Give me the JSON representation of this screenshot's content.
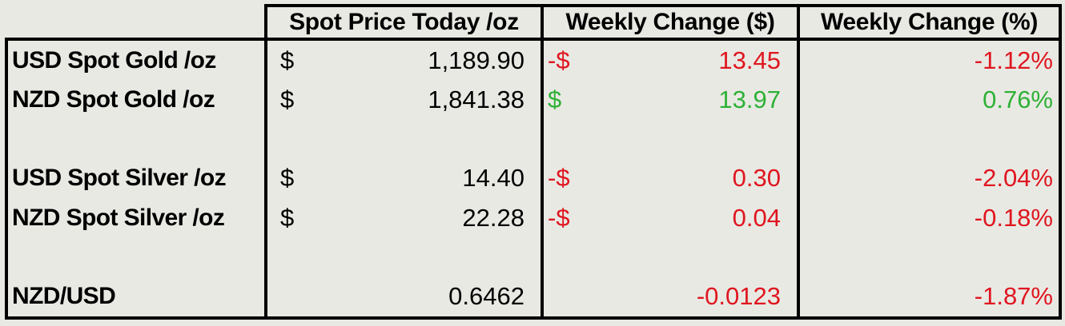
{
  "table": {
    "headers": {
      "spot": "Spot Price Today /oz",
      "change_dollar": "Weekly Change ($)",
      "change_percent": "Weekly Change (%)"
    },
    "rows": [
      {
        "label": "USD Spot Gold /oz",
        "currency": "$",
        "value": "1,189.90",
        "change_currency": "-$",
        "change_value": "13.45",
        "trend": "down",
        "percent": "-1.12%"
      },
      {
        "label": "NZD Spot Gold /oz",
        "currency": "$",
        "value": "1,841.38",
        "change_currency": "$",
        "change_value": "13.97",
        "trend": "up",
        "percent": "0.76%"
      },
      {
        "label": "",
        "currency": "",
        "value": "",
        "change_currency": "",
        "change_value": "",
        "trend": "none",
        "percent": ""
      },
      {
        "label": "USD Spot Silver /oz",
        "currency": "$",
        "value": "14.40",
        "change_currency": "-$",
        "change_value": "0.30",
        "trend": "down",
        "percent": "-2.04%"
      },
      {
        "label": "NZD Spot Silver /oz",
        "currency": "$",
        "value": "22.28",
        "change_currency": "-$",
        "change_value": "0.04",
        "trend": "down",
        "percent": "-0.18%"
      },
      {
        "label": "",
        "currency": "",
        "value": "",
        "change_currency": "",
        "change_value": "",
        "trend": "none",
        "percent": ""
      },
      {
        "label": "NZD/USD",
        "currency": "",
        "value": "0.6462",
        "change_currency": "",
        "change_value": "-0.0123",
        "trend": "down",
        "percent": "-1.87%"
      }
    ]
  },
  "colors": {
    "background": "#e9e9e4",
    "border": "#000000",
    "text": "#000000",
    "negative": "#df161f",
    "positive": "#2eb135"
  },
  "chart_data": {
    "type": "table",
    "title": "Spot precious metals prices and weekly changes",
    "columns": [
      "",
      "Spot Price Today /oz",
      "Weekly Change ($)",
      "Weekly Change (%)"
    ],
    "rows": [
      {
        "instrument": "USD Spot Gold /oz",
        "spot_price": 1189.9,
        "weekly_change_dollar": -13.45,
        "weekly_change_percent": -1.12
      },
      {
        "instrument": "NZD Spot Gold /oz",
        "spot_price": 1841.38,
        "weekly_change_dollar": 13.97,
        "weekly_change_percent": 0.76
      },
      {
        "instrument": "USD Spot Silver /oz",
        "spot_price": 14.4,
        "weekly_change_dollar": -0.3,
        "weekly_change_percent": -2.04
      },
      {
        "instrument": "NZD Spot Silver /oz",
        "spot_price": 22.28,
        "weekly_change_dollar": -0.04,
        "weekly_change_percent": -0.18
      },
      {
        "instrument": "NZD/USD",
        "spot_price": 0.6462,
        "weekly_change_dollar": -0.0123,
        "weekly_change_percent": -1.87
      }
    ],
    "layout_hints": {
      "negative_color": "red",
      "positive_color": "green",
      "value_alignment": "right",
      "accounting_currency_format": true
    }
  }
}
